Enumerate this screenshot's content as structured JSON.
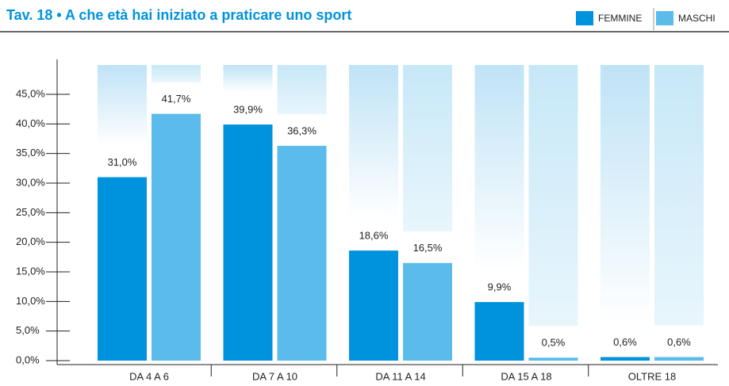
{
  "chart_data": {
    "type": "bar",
    "title": "Tav. 18 • A che età hai iniziato a praticare uno sport",
    "categories": [
      "DA 4 A 6",
      "DA 7 A 10",
      "DA 11 A 14",
      "DA 15 A 18",
      "OLTRE 18"
    ],
    "series": [
      {
        "name": "FEMMINE",
        "color": "#0093dd",
        "values": [
          31.0,
          39.9,
          18.6,
          9.9,
          0.6
        ],
        "value_labels": [
          "31,0%",
          "39,9%",
          "18,6%",
          "9,9%",
          "0,6%"
        ]
      },
      {
        "name": "MASCHI",
        "color": "#5bbcec",
        "values": [
          41.7,
          36.3,
          16.5,
          0.5,
          0.6
        ],
        "value_labels": [
          "41,7%",
          "36,3%",
          "16,5%",
          "0,5%",
          "0,6%"
        ]
      }
    ],
    "ylim": [
      0,
      45
    ],
    "yticks": [
      {
        "value": 0,
        "label": "0,0%"
      },
      {
        "value": 5,
        "label": "5,0%"
      },
      {
        "value": 10,
        "label": "10,0%"
      },
      {
        "value": 15,
        "label": "15,0%"
      },
      {
        "value": 20,
        "label": "20,0%"
      },
      {
        "value": 25,
        "label": "25,0%"
      },
      {
        "value": 30,
        "label": "30,0%"
      },
      {
        "value": 35,
        "label": "35,0%"
      },
      {
        "value": 40,
        "label": "40,0%"
      },
      {
        "value": 45,
        "label": "45,0%"
      }
    ],
    "legend": "top-right"
  }
}
